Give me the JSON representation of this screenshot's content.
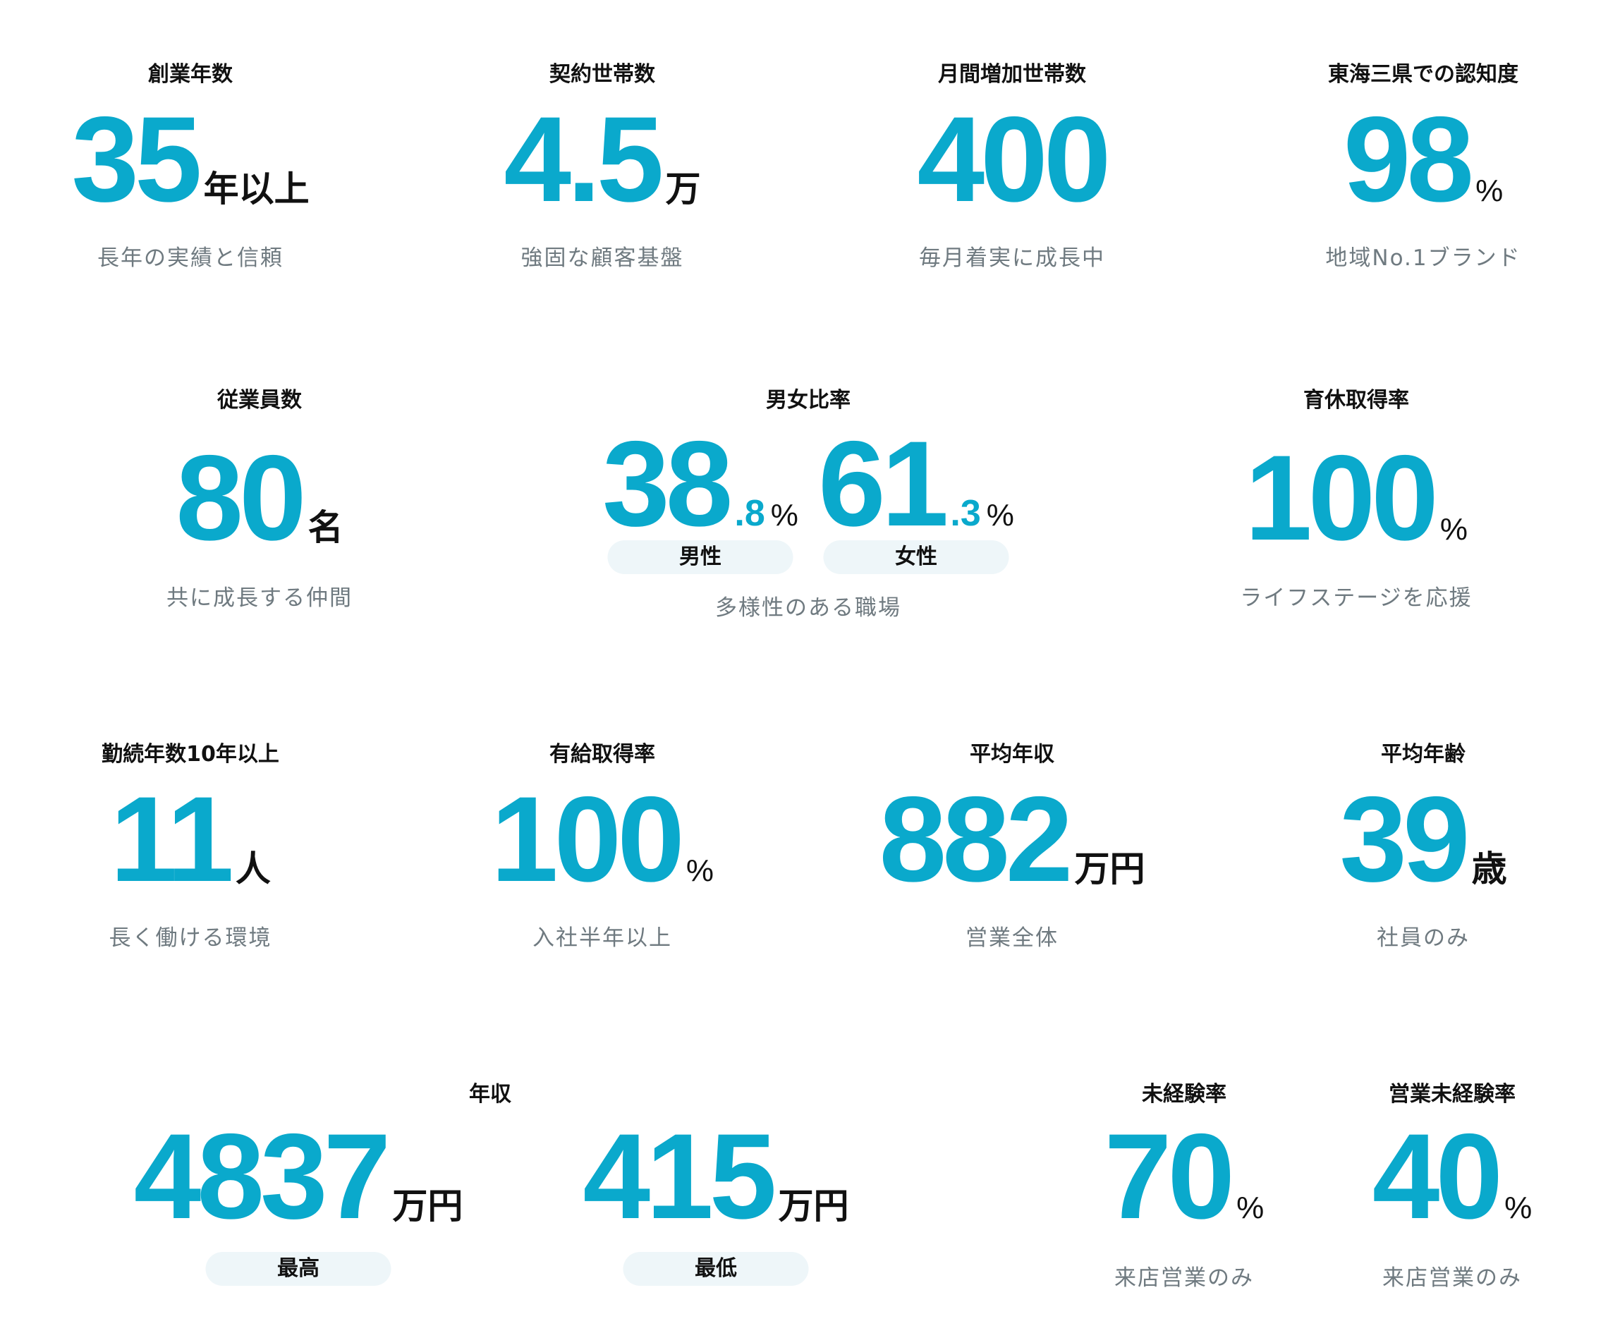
{
  "items": [
    {
      "title": "創業年数",
      "value": "35",
      "unit": "年以上",
      "caption": "長年の実績と信頼"
    },
    {
      "title": "契約世帯数",
      "value": "4.5",
      "unit": "万",
      "caption": "強固な顧客基盤"
    },
    {
      "title": "月間増加世帯数",
      "value": "400",
      "caption": "毎月着実に成長中"
    },
    {
      "title": "東海三県での認知度",
      "value": "98",
      "unit": "%",
      "caption": "地域No.1ブランド"
    },
    {
      "title": "従業員数",
      "value": "80",
      "unit": "名",
      "caption": "共に成長する仲間"
    },
    {
      "title": "男女比率",
      "parts": [
        {
          "value": "38",
          "decimal": ".8",
          "unit": "%",
          "label": "男性"
        },
        {
          "value": "61",
          "decimal": ".3",
          "unit": "%",
          "label": "女性"
        }
      ],
      "caption": "多様性のある職場"
    },
    {
      "title": "育休取得率",
      "value": "100",
      "unit": "%",
      "caption": "ライフステージを応援"
    },
    {
      "title": "勤続年数10年以上",
      "value": "11",
      "unit": "人",
      "caption": "長く働ける環境"
    },
    {
      "title": "有給取得率",
      "value": "100",
      "unit": "%",
      "caption": "入社半年以上"
    },
    {
      "title": "平均年収",
      "value": "882",
      "unit": "万円",
      "caption": "営業全体"
    },
    {
      "title": "平均年齢",
      "value": "39",
      "unit": "歳",
      "caption": "社員のみ"
    },
    {
      "title": "年収",
      "parts": [
        {
          "value": "4837",
          "unit": "万円",
          "label": "最高"
        },
        {
          "value": "415",
          "unit": "万円",
          "label": "最低"
        }
      ]
    },
    {
      "title": "未経験率",
      "value": "70",
      "unit": "%",
      "caption": "来店営業のみ"
    },
    {
      "title": "営業未経験率",
      "value": "40",
      "unit": "%",
      "caption": "来店営業のみ"
    }
  ]
}
